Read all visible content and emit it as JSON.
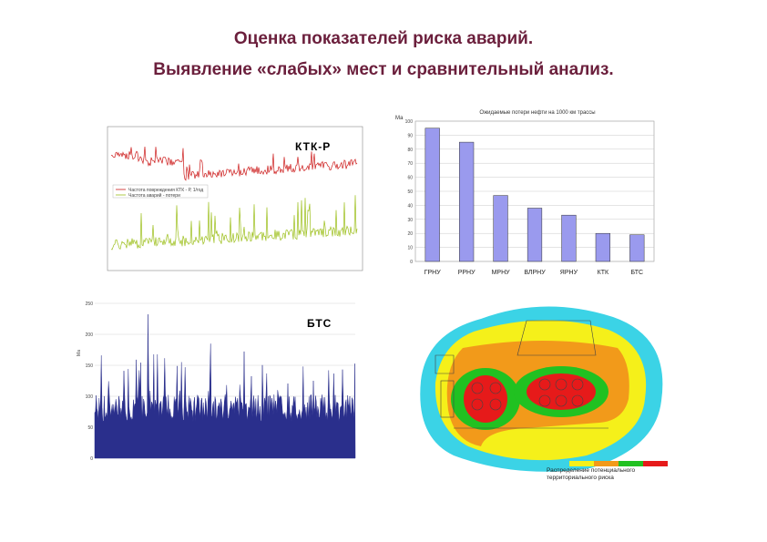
{
  "slide": {
    "title_line1": "Оценка показателей риска аварий.",
    "title_line2": "Выявление «слабых» мест и сравнительный анализ."
  },
  "ktk_panel": {
    "label": "КТК-Р",
    "label_color": "#1f3fa8",
    "legend": [
      "Частота повреждения КТК - Р, 1/год",
      "Частота аварий - потери"
    ],
    "red_color": "#cc1a1a",
    "green_color": "#9cbf1a"
  },
  "bts_panel": {
    "label": "БТС",
    "label_color": "#d0309c",
    "bar_color": "#2a2f8c",
    "y_ticks": [
      "0",
      "50",
      "100",
      "150",
      "200",
      "250"
    ]
  },
  "map_panel": {
    "caption_line1": "Распределение потенциального",
    "caption_line2": "территориального риска",
    "scale_colors": [
      "#3bd3e6",
      "#f5f01a",
      "#f29a1a",
      "#21c121",
      "#e61a1a"
    ]
  },
  "chart_data": {
    "type": "bar",
    "title": "Ожидаемые потери нефти на 1000 км трассы",
    "ylabel": "Ма",
    "categories": [
      "ГРНУ",
      "РРНУ",
      "МРНУ",
      "ВЛРНУ",
      "ЯРНУ",
      "КТК",
      "БТС"
    ],
    "values": [
      95,
      85,
      47,
      38,
      33,
      20,
      19
    ],
    "ylim": [
      0,
      100
    ],
    "yticks": [
      0,
      10,
      20,
      30,
      40,
      50,
      60,
      70,
      80,
      90,
      100
    ],
    "grid": true,
    "bar_color": "#9a9aee"
  }
}
